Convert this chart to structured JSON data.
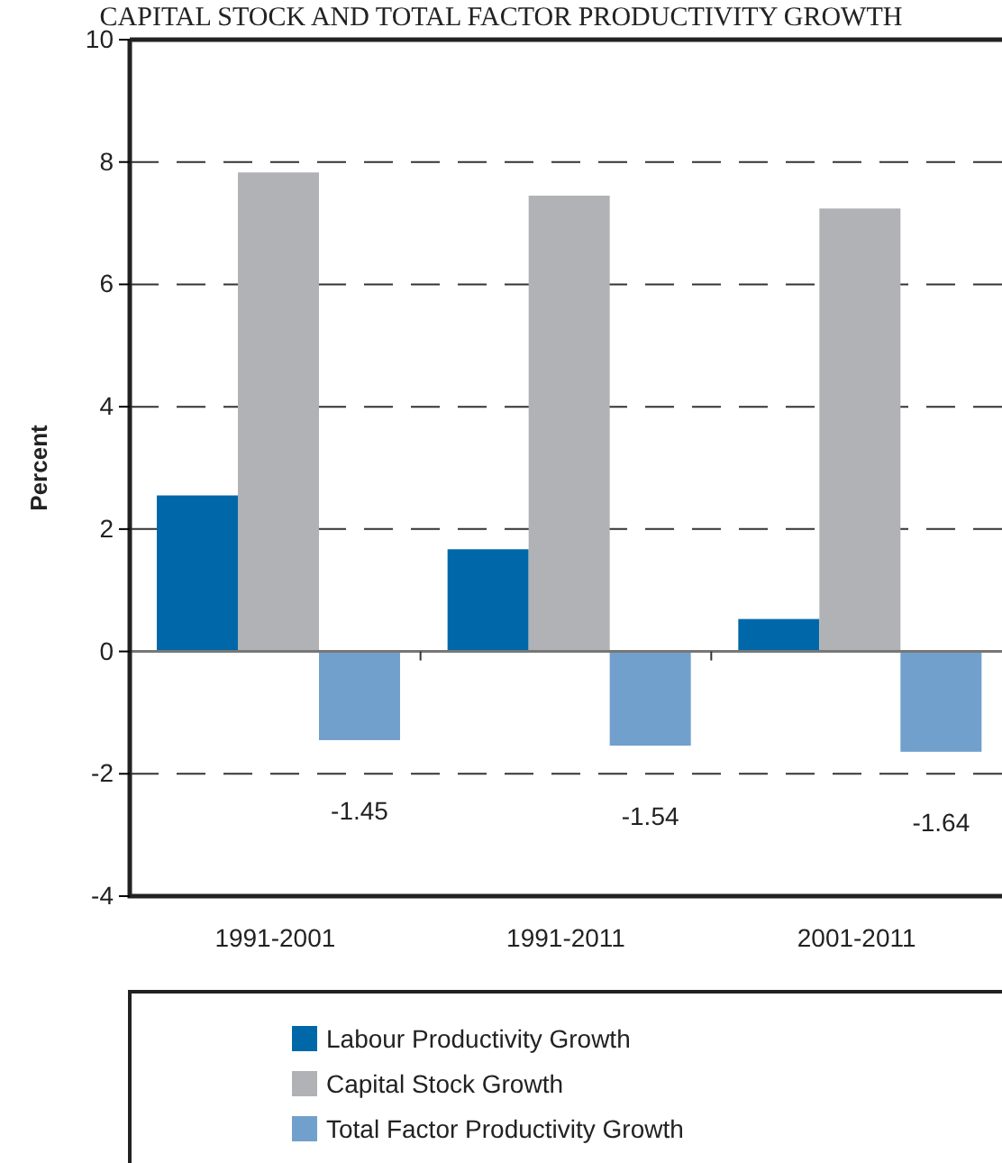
{
  "chart_data": {
    "type": "bar",
    "title": "CAPITAL STOCK AND TOTAL FACTOR PRODUCTIVITY GROWTH",
    "ylabel": "Percent",
    "categories": [
      "1991-2001",
      "1991-2011",
      "2001-2011"
    ],
    "series": [
      {
        "name": "Labour Productivity Growth",
        "color": "#0068a8",
        "values": [
          2.55,
          1.67,
          0.53
        ]
      },
      {
        "name": "Capital Stock Growth",
        "color": "#b1b2b5",
        "values": [
          7.83,
          7.45,
          7.24
        ]
      },
      {
        "name": "Total Factor Productivity Growth",
        "color": "#71a0cc",
        "values": [
          -1.45,
          -1.54,
          -1.64
        ],
        "value_labels": [
          "-1.45",
          "-1.54",
          "-1.64"
        ]
      }
    ],
    "ylim": [
      -4,
      10
    ],
    "yticks": [
      -4,
      -2,
      0,
      2,
      4,
      6,
      8,
      10
    ],
    "grid": "y",
    "legend": "bottom"
  }
}
